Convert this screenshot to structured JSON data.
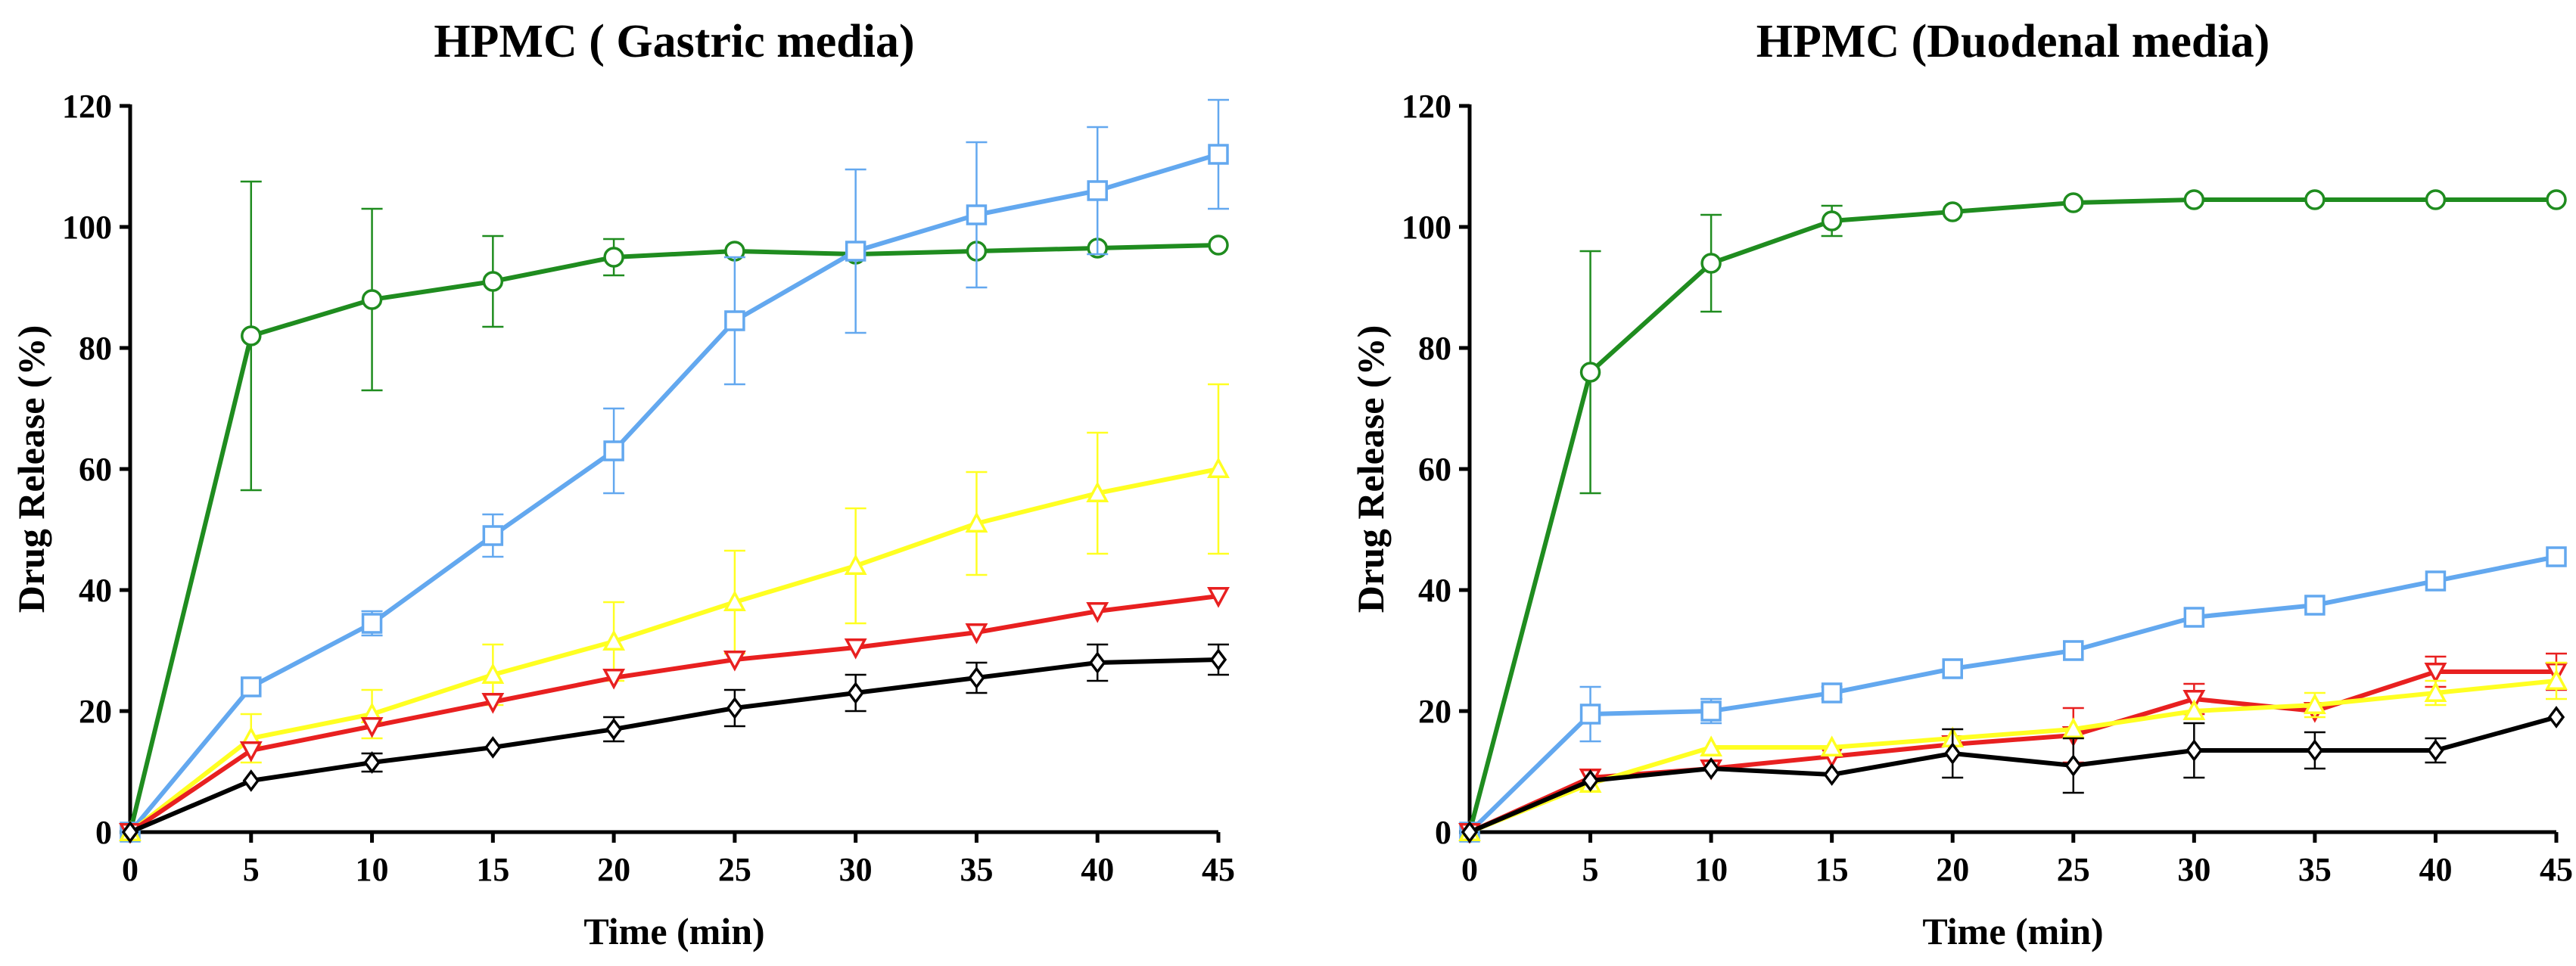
{
  "chart_data": [
    {
      "type": "line",
      "title": "HPMC ( Gastric media)",
      "xlabel": "Time (min)",
      "ylabel": "Drug Release (%)",
      "xlim": [
        0,
        45
      ],
      "ylim": [
        0,
        120
      ],
      "x": [
        0,
        5,
        10,
        15,
        20,
        25,
        30,
        35,
        40,
        45
      ],
      "x_ticks": [
        "0",
        "5",
        "10",
        "15",
        "20",
        "25",
        "30",
        "35",
        "40",
        "45"
      ],
      "y_ticks": [
        "0",
        "20",
        "40",
        "60",
        "80",
        "100",
        "120"
      ],
      "series": [
        {
          "name": "green",
          "color": "#1f8c1f",
          "marker": "circle",
          "values": [
            0,
            82,
            88,
            91,
            95,
            96,
            95.5,
            96,
            96.5,
            97
          ],
          "error": [
            0,
            25.5,
            15,
            7.5,
            3,
            0,
            0,
            0,
            0,
            0
          ]
        },
        {
          "name": "blue",
          "color": "#63a8ef",
          "marker": "square",
          "values": [
            0,
            24,
            34.5,
            49,
            63,
            84.5,
            96,
            102,
            106,
            112
          ],
          "error": [
            0,
            0,
            2,
            3.5,
            7,
            10.5,
            13.5,
            12,
            10.5,
            9
          ]
        },
        {
          "name": "yellow",
          "color": "#ffff22",
          "marker": "triangle-up",
          "values": [
            0,
            15.5,
            19.5,
            26,
            31.5,
            38,
            44,
            51,
            56,
            60
          ],
          "error": [
            0,
            4,
            4,
            5,
            6.5,
            8.5,
            9.5,
            8.5,
            10,
            14
          ]
        },
        {
          "name": "red",
          "color": "#e82020",
          "marker": "triangle-down",
          "values": [
            0,
            13.5,
            17.5,
            21.5,
            25.5,
            28.5,
            30.5,
            33,
            36.5,
            39
          ],
          "error": [
            0,
            0,
            0,
            0,
            0,
            0,
            0,
            0,
            0,
            0
          ]
        },
        {
          "name": "black",
          "color": "#000000",
          "marker": "diamond",
          "values": [
            0,
            8.5,
            11.5,
            14,
            17,
            20.5,
            23,
            25.5,
            28,
            28.5
          ],
          "error": [
            0,
            0,
            1.5,
            0,
            2,
            3,
            3,
            2.5,
            3,
            2.5
          ]
        }
      ]
    },
    {
      "type": "line",
      "title": "HPMC (Duodenal media)",
      "xlabel": "Time (min)",
      "ylabel": "Drug Release (%)",
      "xlim": [
        0,
        45
      ],
      "ylim": [
        0,
        120
      ],
      "x": [
        0,
        5,
        10,
        15,
        20,
        25,
        30,
        35,
        40,
        45
      ],
      "x_ticks": [
        "0",
        "5",
        "10",
        "15",
        "20",
        "25",
        "30",
        "35",
        "40",
        "45"
      ],
      "y_ticks": [
        "0",
        "20",
        "40",
        "60",
        "80",
        "100",
        "120"
      ],
      "series": [
        {
          "name": "green",
          "color": "#1f8c1f",
          "marker": "circle",
          "values": [
            0,
            76,
            94,
            101,
            102.5,
            104,
            104.5,
            104.5,
            104.5,
            104.5
          ],
          "error": [
            0,
            20,
            8,
            2.5,
            0,
            0,
            0,
            0,
            0,
            0
          ]
        },
        {
          "name": "blue",
          "color": "#63a8ef",
          "marker": "square",
          "values": [
            0,
            19.5,
            20,
            23,
            27,
            30,
            35.5,
            37.5,
            41.5,
            45.5
          ],
          "error": [
            0,
            4.5,
            2,
            1,
            0,
            0,
            0,
            0,
            0,
            0
          ]
        },
        {
          "name": "red",
          "color": "#e82020",
          "marker": "triangle-down",
          "values": [
            0,
            9,
            10.5,
            12.5,
            14.5,
            16,
            22,
            20,
            26.5,
            26.5
          ],
          "error": [
            0,
            0,
            0,
            0,
            0,
            4.5,
            2.5,
            0,
            2.5,
            3
          ]
        },
        {
          "name": "yellow",
          "color": "#ffff22",
          "marker": "triangle-up",
          "values": [
            0,
            8,
            14,
            14,
            15.5,
            17,
            20,
            21,
            23,
            25
          ],
          "error": [
            0,
            0,
            0,
            0,
            0,
            0,
            0,
            2,
            2,
            3
          ]
        },
        {
          "name": "black",
          "color": "#000000",
          "marker": "diamond",
          "values": [
            0,
            8.5,
            10.5,
            9.5,
            13,
            11,
            13.5,
            13.5,
            13.5,
            19
          ],
          "error": [
            0,
            0,
            0,
            0,
            4,
            4.5,
            4.5,
            3,
            2,
            0
          ]
        }
      ]
    }
  ]
}
